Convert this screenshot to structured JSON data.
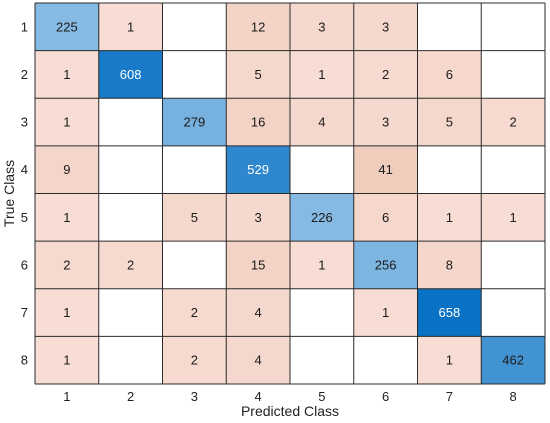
{
  "chart_data": {
    "type": "heatmap",
    "title": "",
    "xlabel": "Predicted Class",
    "ylabel": "True Class",
    "x_categories": [
      "1",
      "2",
      "3",
      "4",
      "5",
      "6",
      "7",
      "8"
    ],
    "y_categories": [
      "1",
      "2",
      "3",
      "4",
      "5",
      "6",
      "7",
      "8"
    ],
    "matrix": [
      [
        225,
        1,
        null,
        12,
        3,
        3,
        null,
        null
      ],
      [
        1,
        608,
        null,
        5,
        1,
        2,
        6,
        null
      ],
      [
        1,
        null,
        279,
        16,
        4,
        3,
        5,
        2
      ],
      [
        9,
        null,
        null,
        529,
        null,
        41,
        null,
        null
      ],
      [
        1,
        null,
        5,
        3,
        226,
        6,
        1,
        1
      ],
      [
        2,
        2,
        null,
        15,
        1,
        256,
        8,
        null
      ],
      [
        1,
        null,
        2,
        4,
        null,
        1,
        658,
        null
      ],
      [
        1,
        null,
        2,
        4,
        null,
        null,
        1,
        462
      ]
    ],
    "grid": true,
    "colors": {
      "diagonal_light": "#86bae3",
      "diagonal_dark": "#0a72c4",
      "offdiag_light": "#f7ddd3",
      "offdiag_dark": "#f0ccbd",
      "text_dark": "#1a1a1a",
      "text_light": "#ffffff",
      "grid_line": "#2b2b2b"
    }
  }
}
